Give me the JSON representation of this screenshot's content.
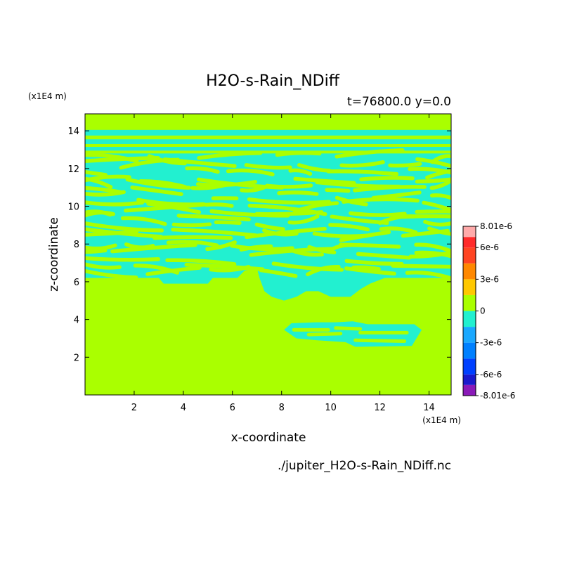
{
  "chart_data": {
    "type": "heatmap",
    "title": "H2O-s-Rain_NDiff",
    "subtitle": "t=76800.0 y=0.0",
    "xlabel": "x-coordinate",
    "ylabel": "z-coordinate",
    "x_unit": "(x1E4 m)",
    "y_unit": "(x1E4 m)",
    "xlim": [
      0.0,
      14.9
    ],
    "ylim": [
      0.0,
      14.9
    ],
    "x_ticks": [
      2,
      4,
      6,
      8,
      10,
      12,
      14
    ],
    "y_ticks": [
      2,
      4,
      6,
      8,
      10,
      12,
      14
    ],
    "file_label": "./jupiter_H2O-s-Rain_NDiff.nc",
    "colorbar": {
      "levels": [
        -8.01e-06,
        -7e-06,
        -6e-06,
        -4.5e-06,
        -3e-06,
        -1.5e-06,
        0,
        1.5e-06,
        3e-06,
        4.5e-06,
        6e-06,
        7e-06,
        8.01e-06
      ],
      "colors": [
        "#8a1ab8",
        "#1a1acc",
        "#0040ff",
        "#0080ff",
        "#1aa8ff",
        "#22f0d0",
        "#aaff00",
        "#ffc800",
        "#ff8800",
        "#ff4422",
        "#ff2a2a",
        "#ffaaaa"
      ],
      "tick_labels": [
        "8.01e-6",
        "6e-6",
        "3e-6",
        "0",
        "-3e-6",
        "-6e-6",
        "-8.01e-6"
      ],
      "tick_values": [
        8.01e-06,
        6e-06,
        3e-06,
        0,
        -3e-06,
        -6e-06,
        -8.01e-06
      ]
    },
    "background_color": "#aaff00",
    "feature_color": "#22f0d0",
    "solid_bands": [
      {
        "z0": 6.2,
        "z1": 14.9,
        "xstart": 0.0,
        "xend": 14.9,
        "note": "layer region"
      }
    ],
    "cells": [
      {
        "x0": 0.0,
        "x1": 14.9,
        "z0": 13.75,
        "z1": 14.05
      },
      {
        "x0": 0.0,
        "x1": 14.9,
        "z0": 13.3,
        "z1": 13.55
      },
      {
        "x0": 0.0,
        "x1": 14.9,
        "z0": 12.95,
        "z1": 13.15
      },
      {
        "x0": 0.0,
        "x1": 14.9,
        "z0": 6.2,
        "z1": 12.8
      },
      {
        "x0": 8.0,
        "x1": 13.6,
        "z0": 2.5,
        "z1": 3.8
      }
    ]
  }
}
